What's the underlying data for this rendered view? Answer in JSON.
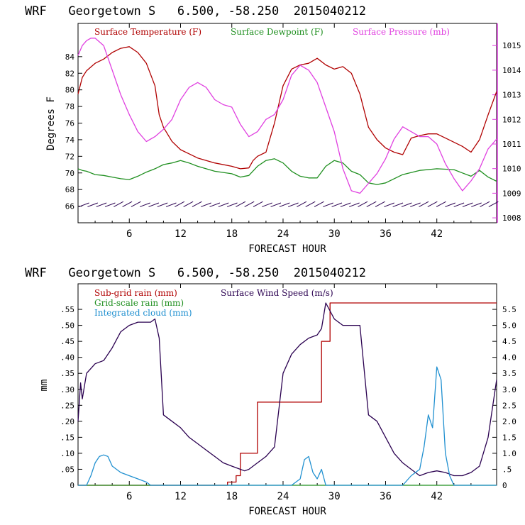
{
  "chart_data": [
    {
      "type": "line",
      "title": "WRF   Georgetown S   6.500, -58.250  2015040212",
      "xlabel": "FORECAST HOUR",
      "ylabel": "Degrees F",
      "xlim": [
        0,
        49
      ],
      "ylim": [
        64,
        88
      ],
      "y2lim": [
        1007.8,
        1015.9
      ],
      "xticks": [
        6,
        12,
        18,
        24,
        30,
        36,
        42
      ],
      "xtick_labels": [
        "6",
        "12",
        "18",
        "24",
        "30",
        "36",
        "42"
      ],
      "yticks": [
        66,
        68,
        70,
        72,
        74,
        76,
        78,
        80,
        82,
        84
      ],
      "ytick_labels": [
        "66",
        "68",
        "70",
        "72",
        "74",
        "76",
        "78",
        "80",
        "82",
        "84"
      ],
      "y2ticks": [
        1008,
        1009,
        1010,
        1011,
        1012,
        1013,
        1014,
        1015
      ],
      "y2tick_labels": [
        "1008",
        "1009",
        "1010",
        "1011",
        "1012",
        "1013",
        "1014",
        "1015"
      ],
      "legend_position": "top",
      "series": [
        {
          "name": "Surface Temperature (F)",
          "color": "#b00000",
          "axis": "left",
          "x": [
            0,
            0.5,
            1,
            2,
            3,
            4,
            5,
            6,
            7,
            8,
            9,
            9.5,
            10,
            11,
            12,
            13,
            14,
            16,
            18,
            19,
            20,
            20.5,
            21,
            22,
            23,
            24,
            25,
            26,
            27,
            28,
            29,
            30,
            31,
            32,
            33,
            34,
            35,
            36,
            37,
            38,
            39,
            40,
            41,
            42,
            43,
            44,
            45,
            46,
            47,
            48,
            49
          ],
          "y": [
            79.5,
            81.5,
            82.3,
            83.2,
            83.7,
            84.5,
            85,
            85.2,
            84.5,
            83.2,
            80.5,
            77,
            75.5,
            73.8,
            72.8,
            72.3,
            71.8,
            71.2,
            70.8,
            70.5,
            70.6,
            71.5,
            72,
            72.5,
            76,
            80.5,
            82.5,
            83,
            83.2,
            83.8,
            83,
            82.5,
            82.8,
            82,
            79.5,
            75.5,
            74,
            73,
            72.5,
            72.2,
            74.2,
            74.5,
            74.7,
            74.7,
            74.2,
            73.7,
            73.2,
            72.5,
            74,
            77,
            79.8
          ]
        },
        {
          "name": "Surface Dewpoint (F)",
          "color": "#1f8f1f",
          "axis": "left",
          "x": [
            0,
            0.5,
            1,
            2,
            3,
            4,
            5,
            6,
            7,
            8,
            9,
            10,
            11,
            12,
            13,
            14,
            16,
            18,
            19,
            20,
            21,
            22,
            23,
            24,
            25,
            26,
            27,
            28,
            29,
            30,
            31,
            32,
            33,
            34,
            35,
            36,
            38,
            40,
            42,
            44,
            45,
            46,
            47,
            48,
            49
          ],
          "y": [
            70.5,
            70.3,
            70.2,
            69.8,
            69.7,
            69.5,
            69.3,
            69.2,
            69.6,
            70.1,
            70.5,
            71,
            71.2,
            71.5,
            71.2,
            70.8,
            70.2,
            69.9,
            69.5,
            69.7,
            70.8,
            71.5,
            71.7,
            71.2,
            70.2,
            69.6,
            69.4,
            69.4,
            70.8,
            71.5,
            71.2,
            70.2,
            69.8,
            68.8,
            68.6,
            68.8,
            69.8,
            70.3,
            70.5,
            70.4,
            70,
            69.6,
            70.3,
            69.5,
            69
          ]
        },
        {
          "name": "Surface Pressure (mb)",
          "color": "#e040e0",
          "axis": "right",
          "x": [
            0,
            0.5,
            1,
            1.5,
            2,
            3,
            4,
            5,
            6,
            7,
            8,
            9,
            10,
            11,
            12,
            13,
            14,
            15,
            16,
            17,
            18,
            19,
            20,
            21,
            22,
            23,
            24,
            25,
            26,
            27,
            28,
            29,
            30,
            31,
            32,
            33,
            34,
            35,
            36,
            37,
            38,
            39,
            40,
            41,
            42,
            43,
            44,
            45,
            46,
            47,
            48,
            49
          ],
          "y": [
            1014.6,
            1015,
            1015.2,
            1015.3,
            1015.3,
            1015,
            1014,
            1013,
            1012.2,
            1011.5,
            1011.1,
            1011.3,
            1011.6,
            1012,
            1012.8,
            1013.3,
            1013.5,
            1013.3,
            1012.8,
            1012.6,
            1012.5,
            1011.8,
            1011.3,
            1011.5,
            1012,
            1012.2,
            1012.8,
            1013.8,
            1014.2,
            1014,
            1013.5,
            1012.5,
            1011.5,
            1010,
            1009.1,
            1009,
            1009.4,
            1009.8,
            1010.4,
            1011.2,
            1011.7,
            1011.5,
            1011.3,
            1011.3,
            1011,
            1010.2,
            1009.6,
            1009.1,
            1009.5,
            1010,
            1010.8,
            1011.2
          ]
        }
      ],
      "wind_barbs": {
        "y": 66.1,
        "count": 48,
        "color": "#2a0050"
      }
    },
    {
      "type": "line",
      "title": "WRF   Georgetown S   6.500, -58.250  2015040212",
      "xlabel": "FORECAST HOUR",
      "ylabel": "mm",
      "xlim": [
        0,
        49
      ],
      "ylim": [
        0,
        0.63
      ],
      "y2lim": [
        0,
        6.3
      ],
      "xticks": [
        6,
        12,
        18,
        24,
        30,
        36,
        42
      ],
      "xtick_labels": [
        "6",
        "12",
        "18",
        "24",
        "30",
        "36",
        "42"
      ],
      "yticks": [
        0,
        0.05,
        0.1,
        0.15,
        0.2,
        0.25,
        0.3,
        0.35,
        0.4,
        0.45,
        0.5,
        0.55
      ],
      "ytick_labels": [
        "0",
        ".05",
        ".10",
        ".15",
        ".20",
        ".25",
        ".30",
        ".35",
        ".40",
        ".45",
        ".50",
        ".55"
      ],
      "y2ticks": [
        0,
        0.5,
        1.0,
        1.5,
        2.0,
        2.5,
        3.0,
        3.5,
        4.0,
        4.5,
        5.0,
        5.5
      ],
      "y2tick_labels": [
        "0",
        ".5",
        "1.0",
        "1.5",
        "2.0",
        "2.5",
        "3.0",
        "3.5",
        "4.0",
        "4.5",
        "5.0",
        "5.5"
      ],
      "legend_position": "top-left",
      "series": [
        {
          "name": "Sub-grid rain (mm)",
          "color": "#b00000",
          "axis": "left",
          "step": true,
          "x": [
            0,
            13.5,
            17.5,
            18.5,
            19,
            20,
            21,
            24,
            27,
            28,
            28.5,
            29.5,
            49
          ],
          "y": [
            0,
            0,
            0.01,
            0.03,
            0.1,
            0.1,
            0.26,
            0.26,
            0.26,
            0.26,
            0.45,
            0.57,
            0.57
          ]
        },
        {
          "name": "Surface Wind Speed (m/s)",
          "color": "#2a0050",
          "axis": "right",
          "x": [
            0,
            0.3,
            0.5,
            1,
            2,
            3,
            4,
            5,
            6,
            7,
            8,
            8.5,
            9,
            9.5,
            10,
            11,
            12,
            13,
            14,
            15,
            16,
            17,
            18,
            19,
            19.5,
            20,
            21,
            22,
            23,
            24,
            25,
            26,
            27,
            28,
            28.5,
            29,
            30,
            31,
            32,
            33,
            34,
            35,
            36,
            37,
            38,
            39,
            40,
            41,
            42,
            43,
            44,
            45,
            46,
            47,
            48,
            49
          ],
          "y": [
            2.0,
            3.2,
            2.7,
            3.5,
            3.8,
            3.9,
            4.3,
            4.8,
            5.0,
            5.1,
            5.1,
            5.1,
            5.2,
            4.6,
            2.2,
            2.0,
            1.8,
            1.5,
            1.3,
            1.1,
            0.9,
            0.7,
            0.6,
            0.5,
            0.45,
            0.5,
            0.7,
            0.9,
            1.2,
            3.5,
            4.1,
            4.4,
            4.6,
            4.7,
            4.9,
            5.7,
            5.2,
            5.0,
            5.0,
            5.0,
            2.2,
            2.0,
            1.5,
            1.0,
            0.7,
            0.5,
            0.3,
            0.4,
            0.45,
            0.4,
            0.3,
            0.3,
            0.4,
            0.6,
            1.5,
            3.3
          ]
        },
        {
          "name": "Grid-scale rain (mm)",
          "color": "#1f8f1f",
          "axis": "left",
          "x": [
            0,
            49
          ],
          "y": [
            0,
            0
          ]
        },
        {
          "name": "Integrated cloud (mm)",
          "color": "#2090d0",
          "axis": "left",
          "x": [
            0,
            1,
            1.5,
            2,
            2.5,
            3,
            3.5,
            4,
            4.5,
            5,
            6,
            7,
            8,
            8.5,
            10,
            14,
            16,
            18,
            20,
            25,
            26,
            26.5,
            27,
            27.5,
            28,
            28.5,
            29,
            30,
            38,
            39,
            40,
            40.5,
            41,
            41.5,
            42,
            42.5,
            43,
            43.5,
            44,
            49
          ],
          "y": [
            0,
            0,
            0.03,
            0.07,
            0.09,
            0.095,
            0.09,
            0.06,
            0.05,
            0.04,
            0.03,
            0.02,
            0.01,
            0,
            0,
            0,
            0,
            0,
            0,
            0,
            0.02,
            0.08,
            0.09,
            0.04,
            0.02,
            0.05,
            0,
            0,
            0,
            0.03,
            0.05,
            0.12,
            0.22,
            0.18,
            0.37,
            0.33,
            0.1,
            0.03,
            0,
            0
          ]
        }
      ]
    }
  ]
}
